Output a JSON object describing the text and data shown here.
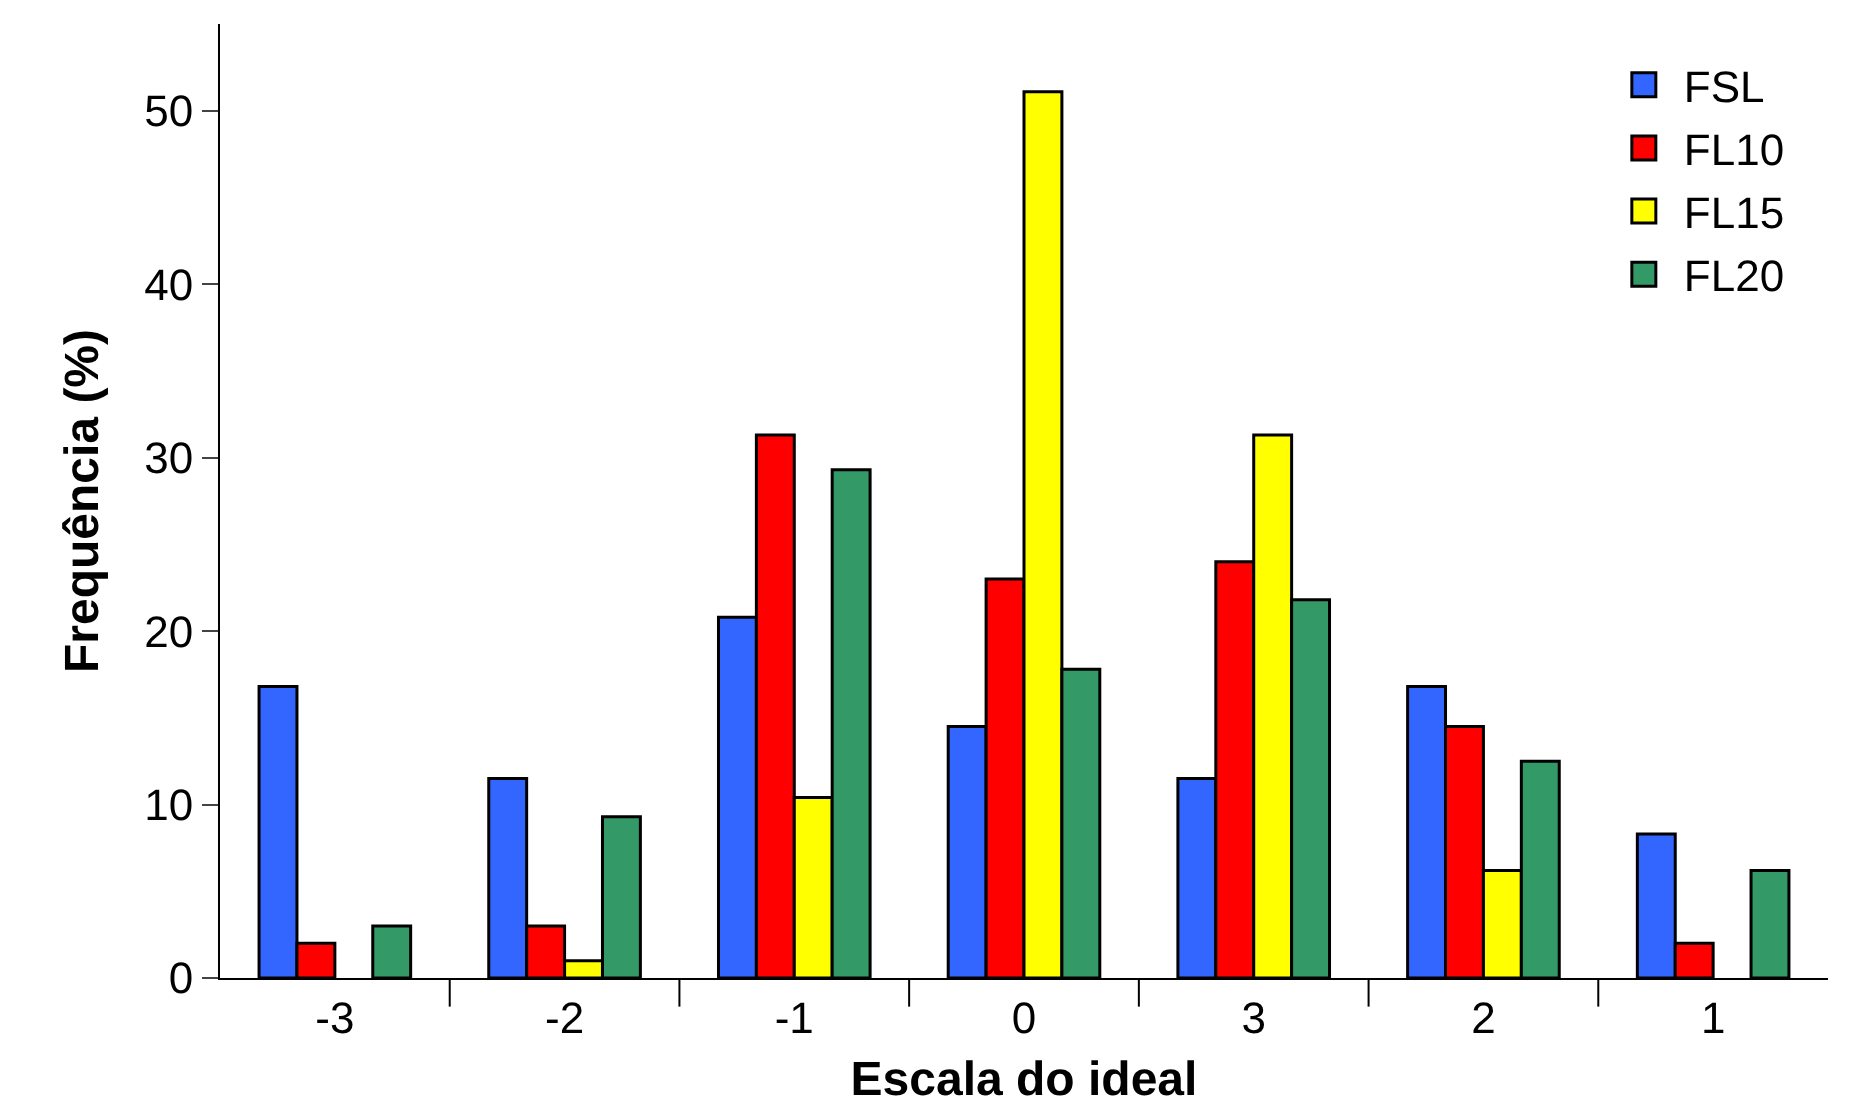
{
  "chart_data": {
    "type": "bar",
    "xlabel": "Escala do ideal",
    "ylabel": "Frequência (%)",
    "categories": [
      "-3",
      "-2",
      "-1",
      "0",
      "3",
      "2",
      "1"
    ],
    "series": [
      {
        "name": "FSL",
        "color": "#3366ff",
        "values": [
          16.8,
          11.5,
          20.8,
          14.5,
          11.5,
          16.8,
          8.3
        ]
      },
      {
        "name": "FL10",
        "color": "#ff0000",
        "values": [
          2.0,
          3.0,
          31.3,
          23.0,
          24.0,
          14.5,
          2.0
        ]
      },
      {
        "name": "FL15",
        "color": "#ffff00",
        "values": [
          null,
          1.0,
          10.4,
          51.1,
          31.3,
          6.2,
          null
        ]
      },
      {
        "name": "FL20",
        "color": "#339966",
        "values": [
          3.0,
          9.3,
          29.3,
          17.8,
          21.8,
          12.5,
          6.2
        ]
      }
    ],
    "ylim": [
      0,
      55
    ],
    "yticks": [
      0,
      10,
      20,
      30,
      40,
      50
    ],
    "legend": "top right"
  }
}
